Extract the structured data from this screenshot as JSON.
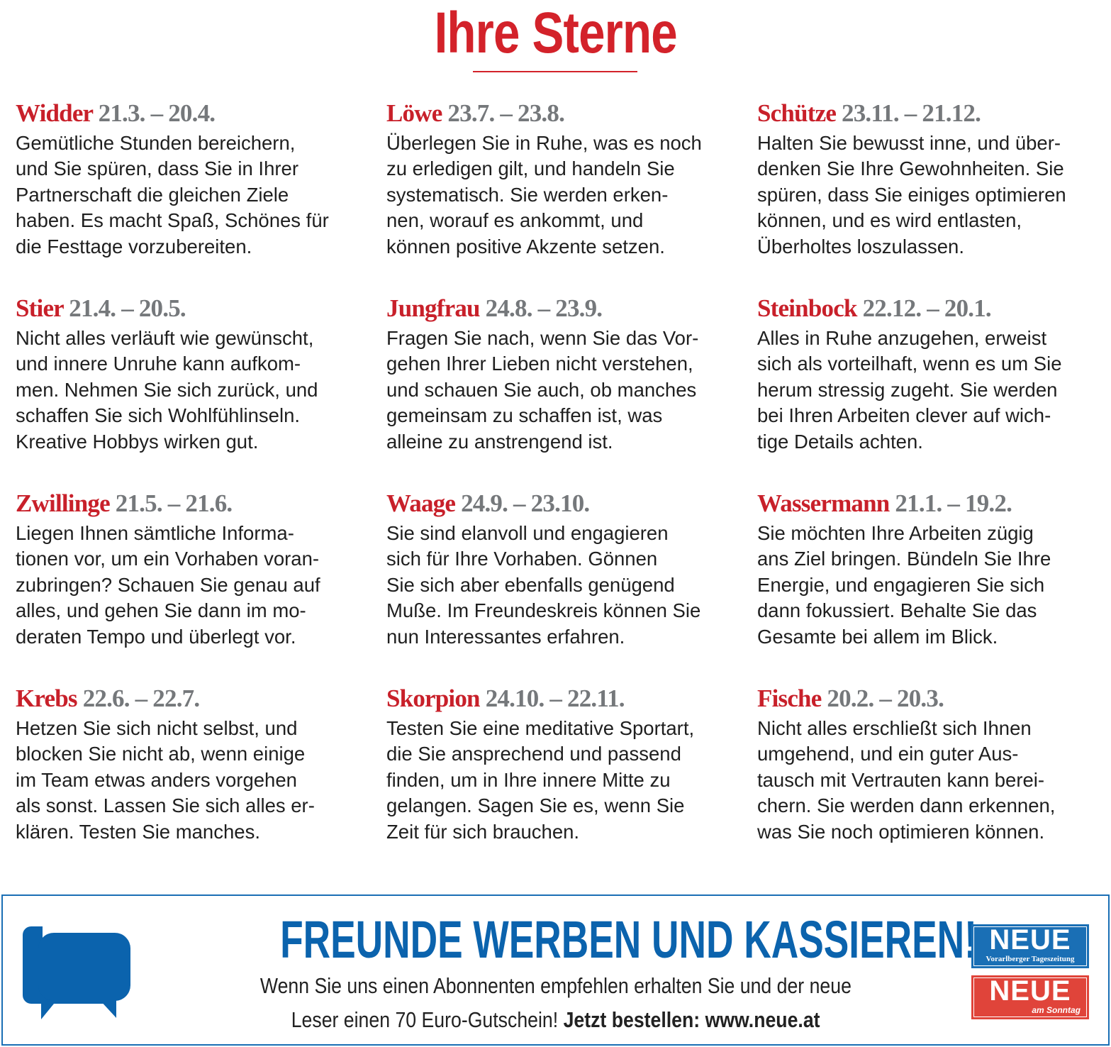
{
  "title": "Ihre Sterne",
  "colors": {
    "accent_red": "#d3222a",
    "date_gray": "#75787b",
    "ad_blue": "#0b63ad"
  },
  "signs": [
    {
      "name": "Widder",
      "dates": "21.3. – 20.4.",
      "lines": [
        "Gemütliche Stunden bereichern,",
        "und Sie spüren, dass Sie in Ihrer",
        "Partnerschaft die gleichen Ziele",
        "haben. Es macht Spaß, Schönes für",
        "die Festtage vorzubereiten."
      ]
    },
    {
      "name": "Stier",
      "dates": "21.4. – 20.5.",
      "lines": [
        "Nicht alles verläuft wie gewünscht,",
        "und innere Unruhe kann aufkom-",
        "men. Nehmen Sie sich zurück, und",
        "schaffen Sie sich Wohlfühlinseln.",
        "Kreative Hobbys wirken gut."
      ]
    },
    {
      "name": "Zwillinge",
      "dates": "21.5. – 21.6.",
      "lines": [
        "Liegen Ihnen sämtliche Informa-",
        "tionen vor, um ein Vorhaben voran-",
        "zubringen? Schauen Sie genau auf",
        "alles, und gehen Sie dann im mo-",
        "deraten Tempo und überlegt vor."
      ]
    },
    {
      "name": "Krebs",
      "dates": "22.6. – 22.7.",
      "lines": [
        "Hetzen Sie sich nicht selbst, und",
        "blocken Sie nicht ab, wenn einige",
        "im Team etwas anders vorgehen",
        "als sonst. Lassen Sie sich alles er-",
        "klären. Testen Sie manches."
      ]
    },
    {
      "name": "Löwe",
      "dates": "23.7. – 23.8.",
      "lines": [
        "Überlegen Sie in Ruhe, was es noch",
        "zu erledigen gilt, und handeln Sie",
        "systematisch. Sie werden erken-",
        "nen, worauf es ankommt, und",
        "können positive Akzente setzen."
      ]
    },
    {
      "name": "Jungfrau",
      "dates": "24.8. – 23.9.",
      "lines": [
        "Fragen Sie nach, wenn Sie das Vor-",
        "gehen Ihrer Lieben nicht verstehen,",
        "und schauen Sie auch, ob manches",
        "gemeinsam zu schaffen ist, was",
        "alleine zu anstrengend ist."
      ]
    },
    {
      "name": "Waage",
      "dates": "24.9. – 23.10.",
      "lines": [
        "Sie sind elanvoll und engagieren",
        "sich für Ihre Vorhaben. Gönnen",
        "Sie sich aber ebenfalls genügend",
        "Muße. Im Freundeskreis können Sie",
        "nun Interessantes erfahren."
      ]
    },
    {
      "name": "Skorpion",
      "dates": "24.10. – 22.11.",
      "lines": [
        "Testen Sie eine meditative Sportart,",
        "die Sie ansprechend und passend",
        "finden, um in Ihre innere Mitte zu",
        "gelangen. Sagen Sie es, wenn Sie",
        "Zeit für sich brauchen."
      ]
    },
    {
      "name": "Schütze",
      "dates": "23.11. – 21.12.",
      "lines": [
        "Halten Sie bewusst inne, und über-",
        "denken Sie Ihre Gewohnheiten. Sie",
        "spüren, dass Sie einiges optimieren",
        "können, und es wird entlasten,",
        "Überholtes loszulassen."
      ]
    },
    {
      "name": "Steinbock",
      "dates": "22.12. – 20.1.",
      "lines": [
        "Alles in Ruhe anzugehen, erweist",
        "sich als vorteilhaft, wenn es um Sie",
        "herum stressig zugeht. Sie werden",
        "bei Ihren Arbeiten clever auf wich-",
        "tige Details achten."
      ]
    },
    {
      "name": "Wassermann",
      "dates": "21.1. – 19.2.",
      "lines": [
        "Sie möchten Ihre Arbeiten zügig",
        "ans Ziel bringen. Bündeln Sie Ihre",
        "Energie, und engagieren Sie sich",
        "dann fokussiert. Behalte Sie das",
        "Gesamte bei allem im Blick."
      ]
    },
    {
      "name": "Fische",
      "dates": "20.2. – 20.3.",
      "lines": [
        "Nicht alles erschließt sich Ihnen",
        "umgehend, und ein guter Aus-",
        "tausch mit Vertrauten kann berei-",
        "chern. Sie werden dann erkennen,",
        "was Sie noch optimieren können."
      ]
    }
  ],
  "ad": {
    "icon": "chat-bubbles-icon",
    "headline": "FREUNDE WERBEN UND KASSIEREN!",
    "line1": "Wenn Sie uns einen Abonnenten empfehlen erhalten Sie und der neue",
    "line2": "Leser einen 70 Euro-Gutschein!",
    "cta": "Jetzt bestellen: www.neue.at",
    "logo1": {
      "name": "NEUE",
      "sub": "Vorarlberger Tageszeitung",
      "color": "#1a6fb5"
    },
    "logo2": {
      "name": "NEUE",
      "sub": "am Sonntag",
      "color": "#e0443a"
    }
  }
}
